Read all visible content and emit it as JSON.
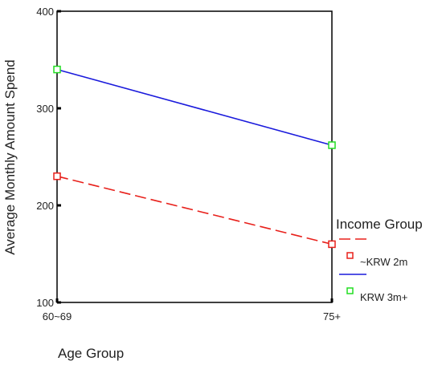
{
  "chart_data": {
    "type": "line",
    "title": "",
    "xlabel": "Age Group",
    "ylabel": "Average Monthly Amount Spend",
    "categories": [
      "60~69",
      "75+"
    ],
    "ylim": [
      100,
      400
    ],
    "yticks": [
      100,
      200,
      300,
      400
    ],
    "grid": false,
    "legend": {
      "title": "Income Group",
      "placement": "right"
    },
    "series": [
      {
        "name": "~KRW 2m",
        "values": [
          230,
          160
        ],
        "color": "#e8201b",
        "line_style": "dashed",
        "marker": "square"
      },
      {
        "name": "KRW 3m+",
        "values": [
          340,
          262
        ],
        "color": "#1a1adc",
        "marker_color": "#22dd22",
        "line_style": "solid",
        "marker": "square"
      }
    ]
  }
}
